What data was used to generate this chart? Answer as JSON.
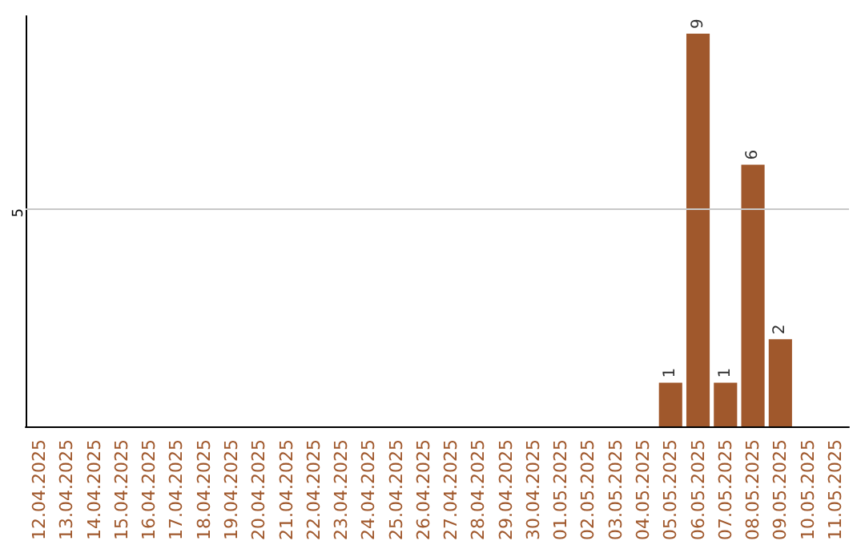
{
  "chart_data": {
    "type": "bar",
    "categories": [
      "12.04.2025",
      "13.04.2025",
      "14.04.2025",
      "15.04.2025",
      "16.04.2025",
      "17.04.2025",
      "18.04.2025",
      "19.04.2025",
      "20.04.2025",
      "21.04.2025",
      "22.04.2025",
      "23.04.2025",
      "24.04.2025",
      "25.04.2025",
      "26.04.2025",
      "27.04.2025",
      "28.04.2025",
      "29.04.2025",
      "30.04.2025",
      "01.05.2025",
      "02.05.2025",
      "03.05.2025",
      "04.05.2025",
      "05.05.2025",
      "06.05.2025",
      "07.05.2025",
      "08.05.2025",
      "09.05.2025",
      "10.05.2025",
      "11.05.2025"
    ],
    "values": [
      null,
      null,
      null,
      null,
      null,
      null,
      null,
      null,
      null,
      null,
      null,
      null,
      null,
      null,
      null,
      null,
      null,
      null,
      null,
      null,
      null,
      null,
      null,
      1,
      9,
      1,
      6,
      2,
      null,
      null
    ],
    "value_labels": [
      null,
      null,
      null,
      null,
      null,
      null,
      null,
      null,
      null,
      null,
      null,
      null,
      null,
      null,
      null,
      null,
      null,
      null,
      null,
      null,
      null,
      null,
      null,
      "1",
      "9",
      "1",
      "6",
      "2",
      null,
      null
    ],
    "color": "#a0582c",
    "ref_lines": [
      {
        "axis": "y",
        "value": 5,
        "label": "5",
        "color": "#c8c8c8"
      }
    ]
  }
}
